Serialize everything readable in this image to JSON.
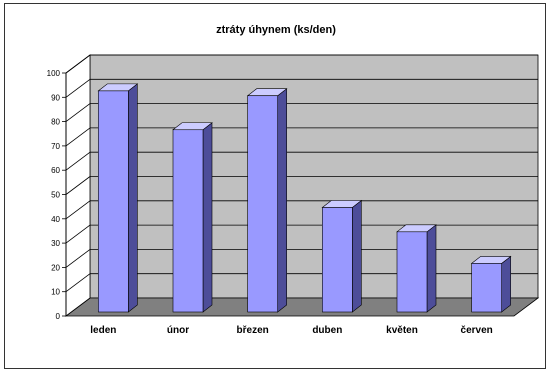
{
  "chart_data": {
    "type": "bar",
    "title": "ztráty úhynem (ks/den)",
    "categories": [
      "leden",
      "únor",
      "březen",
      "duben",
      "květen",
      "červen"
    ],
    "values": [
      91,
      75,
      89,
      43,
      33,
      20
    ],
    "ylim": [
      0,
      100
    ],
    "yticks": [
      0,
      10,
      20,
      30,
      40,
      50,
      60,
      70,
      80,
      90,
      100
    ],
    "grid": true,
    "legend": "none",
    "colors": {
      "bar_front": "#9999ff",
      "bar_side": "#4d4d99",
      "bar_top": "#ccccff",
      "back_wall": "#c0c0c0",
      "floor": "#808080"
    }
  }
}
